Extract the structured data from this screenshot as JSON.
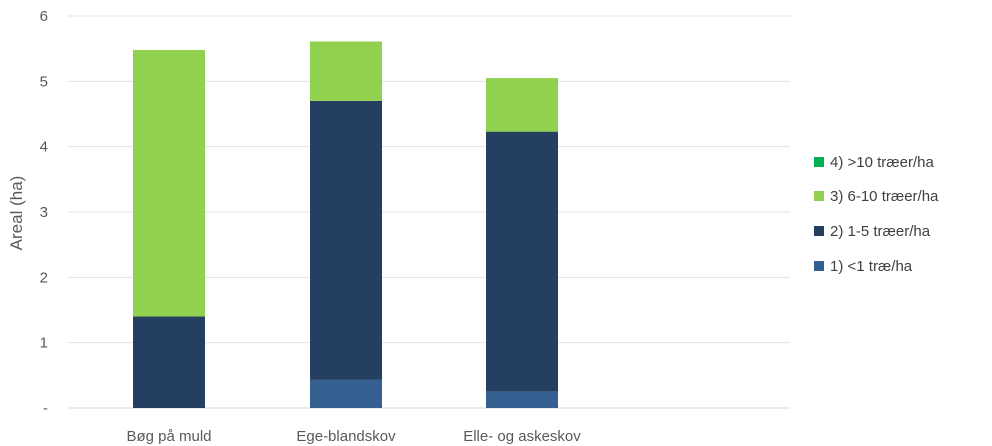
{
  "chart_data": {
    "type": "bar",
    "stacked": true,
    "categories": [
      "Bøg på muld",
      "Ege-blandskov",
      "Elle- og askeskov"
    ],
    "series": [
      {
        "name": "1) <1 træ/ha",
        "color": "#355F91",
        "values": [
          0,
          0.43,
          0.25
        ]
      },
      {
        "name": "2) 1-5 træer/ha",
        "color": "#243F60",
        "values": [
          1.4,
          4.27,
          3.98
        ]
      },
      {
        "name": "3) 6-10 træer/ha",
        "color": "#92D050",
        "values": [
          4.08,
          0.91,
          0.82
        ]
      },
      {
        "name": "4) >10 træer/ha",
        "color": "#00B050",
        "values": [
          0,
          0,
          0
        ]
      }
    ],
    "ylabel": "Areal (ha)",
    "xlabel": "",
    "ylim": [
      0,
      6
    ],
    "yticks": [
      "-",
      "1",
      "2",
      "3",
      "4",
      "5",
      "6"
    ],
    "grid": true,
    "legend_position": "right",
    "legend_order": [
      3,
      2,
      1,
      0
    ]
  }
}
